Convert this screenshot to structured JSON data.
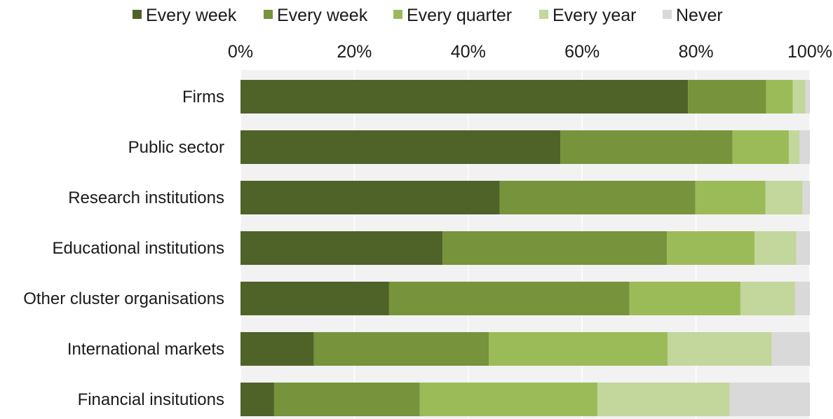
{
  "chart_data": {
    "type": "bar",
    "orientation": "horizontal",
    "stacked": true,
    "categories": [
      "Firms",
      "Public sector",
      "Research institutions",
      "Educational institutions",
      "Other cluster organisations",
      "International markets",
      "Financial insitutions"
    ],
    "series": [
      {
        "name": "Every week",
        "color": "#4f6228",
        "values": [
          78.6,
          56.2,
          45.5,
          35.5,
          26.1,
          12.9,
          5.9
        ]
      },
      {
        "name": "Every week",
        "color": "#77933c",
        "values": [
          13.7,
          30.2,
          34.4,
          39.4,
          42.2,
          30.7,
          25.6
        ]
      },
      {
        "name": "Every quarter",
        "color": "#9bbb59",
        "values": [
          4.7,
          9.9,
          12.3,
          15.4,
          19.5,
          31.4,
          31.2
        ]
      },
      {
        "name": "Every year",
        "color": "#c3d69b",
        "values": [
          2.2,
          1.9,
          6.5,
          7.3,
          9.6,
          18.3,
          23.2
        ]
      },
      {
        "name": "Never",
        "color": "#d9d9d9",
        "values": [
          0.8,
          1.8,
          1.3,
          2.4,
          2.6,
          6.7,
          14.1
        ]
      }
    ],
    "xlim": [
      0,
      100
    ],
    "xticks": [
      "0%",
      "20%",
      "40%",
      "60%",
      "80%",
      "100%"
    ],
    "xaxis_position": "top",
    "legend_position": "top",
    "grid": true,
    "plot_background": "#f2f2f2",
    "grid_color": "#ffffff"
  }
}
